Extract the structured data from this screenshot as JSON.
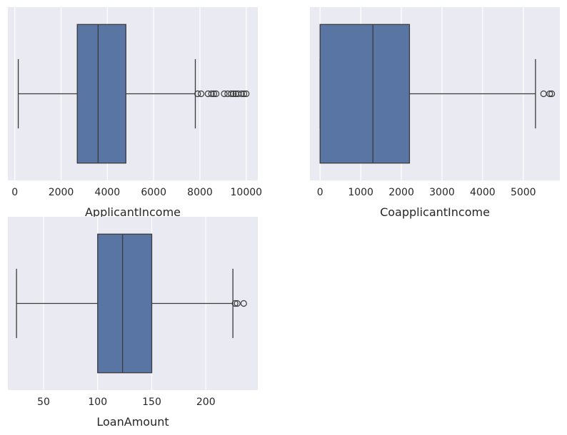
{
  "figure": {
    "background": "#ffffff",
    "axes_background": "#eaeaf2",
    "grid_color": "#ffffff",
    "box_color": "#5875a4",
    "line_color": "#3b3b3b"
  },
  "chart_data": [
    {
      "type": "boxplot",
      "orientation": "horizontal",
      "xlabel": "ApplicantIncome",
      "ylabel": "",
      "xlim": [
        -300,
        10500
      ],
      "xticks": [
        0,
        2000,
        4000,
        6000,
        8000,
        10000
      ],
      "xtick_labels": [
        "0",
        "2000",
        "4000",
        "6000",
        "8000",
        "10000"
      ],
      "grid": true,
      "stats": {
        "whisker_low": 150,
        "q1": 2700,
        "median": 3600,
        "q3": 4800,
        "whisker_high": 7800
      },
      "outliers": [
        7900,
        8050,
        8350,
        8500,
        8600,
        8700,
        9050,
        9200,
        9350,
        9450,
        9550,
        9650,
        9800,
        9900,
        10000
      ]
    },
    {
      "type": "boxplot",
      "orientation": "horizontal",
      "xlabel": "CoapplicantIncome",
      "ylabel": "",
      "xlim": [
        -250,
        5900
      ],
      "xticks": [
        0,
        1000,
        2000,
        3000,
        4000,
        5000
      ],
      "xtick_labels": [
        "0",
        "1000",
        "2000",
        "3000",
        "4000",
        "5000"
      ],
      "grid": true,
      "stats": {
        "whisker_low": 0,
        "q1": 0,
        "median": 1300,
        "q3": 2200,
        "whisker_high": 5300
      },
      "outliers": [
        5500,
        5650,
        5700
      ]
    },
    {
      "type": "boxplot",
      "orientation": "horizontal",
      "xlabel": "LoanAmount",
      "ylabel": "",
      "xlim": [
        17,
        248
      ],
      "xticks": [
        50,
        100,
        150,
        200
      ],
      "xtick_labels": [
        "50",
        "100",
        "150",
        "200"
      ],
      "grid": true,
      "stats": {
        "whisker_low": 25,
        "q1": 100,
        "median": 123,
        "q3": 150,
        "whisker_high": 225
      },
      "outliers": [
        227,
        229,
        235
      ]
    }
  ]
}
